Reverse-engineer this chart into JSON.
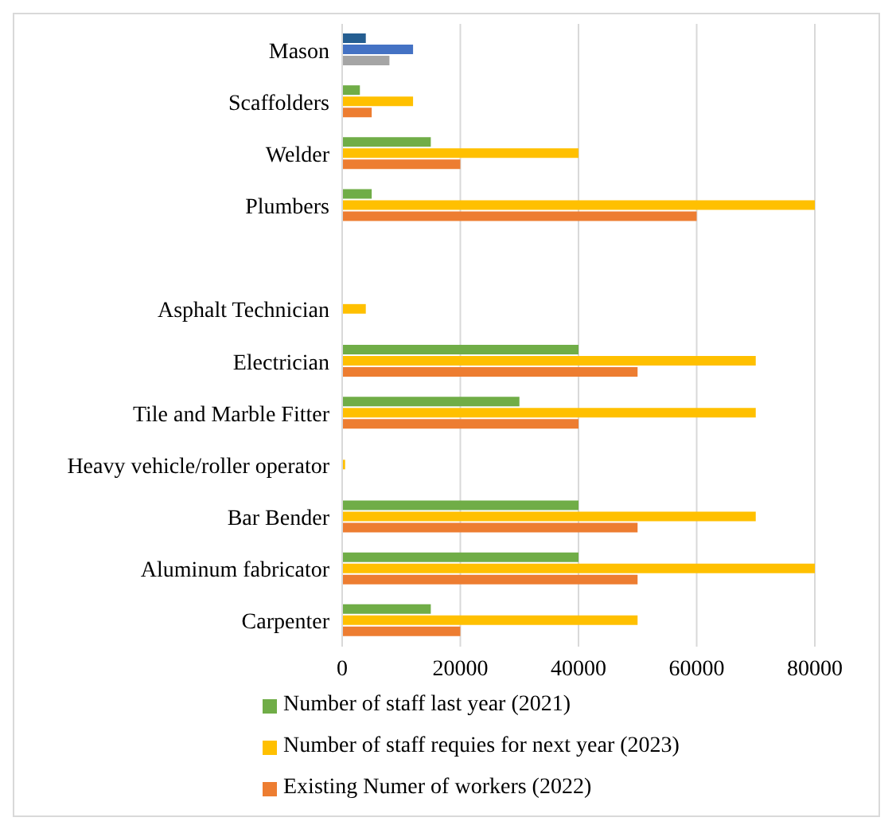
{
  "chart_data": {
    "type": "bar",
    "orientation": "horizontal",
    "categories": [
      "Mason",
      "Scaffolders",
      "Welder",
      "Plumbers",
      null,
      "Asphalt Technician",
      "Electrician",
      "Tile and Marble Fitter",
      "Heavy vehicle/roller operator",
      "Bar Bender",
      "Aluminum fabricator",
      "Carpenter"
    ],
    "series": [
      {
        "name": "Number of staff last year (2021)",
        "color": "#70ad47",
        "colors": [
          "#255e91",
          "#70ad47",
          "#70ad47",
          "#70ad47",
          "#70ad47",
          "#70ad47",
          "#70ad47",
          "#70ad47",
          "#70ad47",
          "#70ad47",
          "#70ad47",
          "#70ad47"
        ],
        "values": [
          4000,
          3000,
          15000,
          5000,
          null,
          0,
          40000,
          30000,
          0,
          40000,
          40000,
          15000
        ]
      },
      {
        "name": "Number of staff requies for next year (2023)",
        "color": "#ffc000",
        "colors": [
          "#4472c4",
          "#ffc000",
          "#ffc000",
          "#ffc000",
          "#ffc000",
          "#ffc000",
          "#ffc000",
          "#ffc000",
          "#ffc000",
          "#ffc000",
          "#ffc000",
          "#ffc000"
        ],
        "values": [
          12000,
          12000,
          40000,
          80000,
          null,
          4000,
          70000,
          70000,
          500,
          70000,
          80000,
          50000
        ]
      },
      {
        "name": "Existing Numer of workers (2022)",
        "color": "#ed7d31",
        "colors": [
          "#a5a5a5",
          "#ed7d31",
          "#ed7d31",
          "#ed7d31",
          "#ed7d31",
          "#ed7d31",
          "#ed7d31",
          "#ed7d31",
          "#ed7d31",
          "#ed7d31",
          "#ed7d31",
          "#ed7d31"
        ],
        "values": [
          8000,
          5000,
          20000,
          60000,
          null,
          0,
          50000,
          40000,
          0,
          50000,
          50000,
          20000
        ]
      }
    ],
    "xlim": [
      0,
      80000
    ],
    "xticks": [
      0,
      20000,
      40000,
      60000,
      80000
    ],
    "grid": "x",
    "legend": "bottom"
  }
}
